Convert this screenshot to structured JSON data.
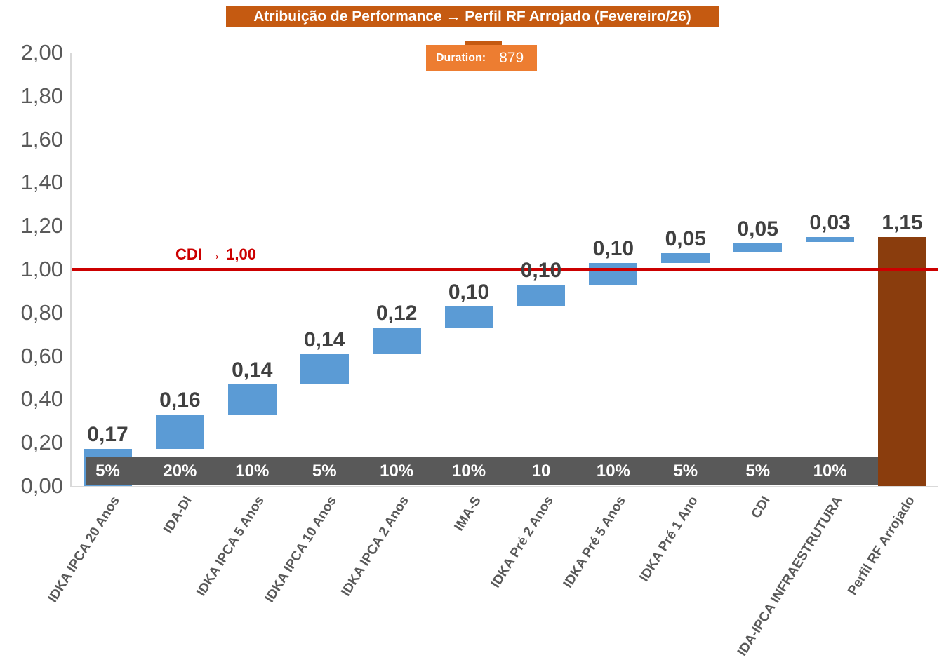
{
  "title": {
    "text": "Atribuição de Performance → Perfil RF Arrojado (Fevereiro/26)"
  },
  "duration_box": {
    "label": "Duration:",
    "value": "879"
  },
  "colors": {
    "title_bg": "#C55A11",
    "duration_bg": "#ED7D31",
    "duration_tab": "#C55A11",
    "bar_blue": "#5B9BD5",
    "bar_brown": "#8A3D0D",
    "band_gray": "#595959",
    "ref_red": "#CC0000",
    "axis_text": "#595959",
    "value_text": "#404040"
  },
  "chart_data": {
    "type": "bar",
    "subtype": "waterfall",
    "title": "Atribuição de Performance → Perfil RF Arrojado (Fevereiro/26)",
    "duration": 879,
    "ylim": [
      0,
      2
    ],
    "ytick_step": 0.2,
    "ytick_labels": [
      "0,00",
      "0,20",
      "0,40",
      "0,60",
      "0,80",
      "1,00",
      "1,20",
      "1,40",
      "1,60",
      "1,80",
      "2,00"
    ],
    "reference_line": {
      "value": 1.0,
      "label": "CDI → 1,00"
    },
    "grid": false,
    "legend": false,
    "categories": [
      "IDKA IPCA 20 Anos",
      "IDA-DI",
      "IDKA IPCA 5 Anos",
      "IDKA IPCA 10 Anos",
      "IDKA IPCA 2 Anos",
      "IMA-S",
      "IDKA Pré 2 Anos",
      "IDKA Pré 5 Anos",
      "IDKA Pré 1 Ano",
      "CDI",
      "IDA-IPCA INFRAESTRUTURA",
      "Perfil RF Arrojado"
    ],
    "bars": [
      {
        "category": "IDKA IPCA 20 Anos",
        "weight": "5%",
        "value": 0.17,
        "label": "0,17",
        "start": 0,
        "end": 0.17,
        "color": "bar_blue"
      },
      {
        "category": "IDA-DI",
        "weight": "20%",
        "value": 0.16,
        "label": "0,16",
        "start": 0.17,
        "end": 0.33,
        "color": "bar_blue"
      },
      {
        "category": "IDKA IPCA 5 Anos",
        "weight": "10%",
        "value": 0.14,
        "label": "0,14",
        "start": 0.33,
        "end": 0.47,
        "color": "bar_blue"
      },
      {
        "category": "IDKA IPCA 10 Anos",
        "weight": "5%",
        "value": 0.14,
        "label": "0,14",
        "start": 0.47,
        "end": 0.61,
        "color": "bar_blue"
      },
      {
        "category": "IDKA IPCA 2 Anos",
        "weight": "10%",
        "value": 0.12,
        "label": "0,12",
        "start": 0.61,
        "end": 0.73,
        "color": "bar_blue"
      },
      {
        "category": "IMA-S",
        "weight": "10%",
        "value": 0.1,
        "label": "0,10",
        "start": 0.73,
        "end": 0.83,
        "color": "bar_blue"
      },
      {
        "category": "IDKA Pré 2 Anos",
        "weight": "10",
        "value": 0.1,
        "label": "0,10",
        "start": 0.83,
        "end": 0.93,
        "color": "bar_blue"
      },
      {
        "category": "IDKA Pré 5 Anos",
        "weight": "10%",
        "value": 0.1,
        "label": "0,10",
        "start": 0.93,
        "end": 1.03,
        "color": "bar_blue"
      },
      {
        "category": "IDKA Pré 1 Ano",
        "weight": "5%",
        "value": 0.05,
        "label": "0,05",
        "start": 1.03,
        "end": 1.075,
        "color": "bar_blue"
      },
      {
        "category": "CDI",
        "weight": "5%",
        "value": 0.05,
        "label": "0,05",
        "start": 1.078,
        "end": 1.121,
        "color": "bar_blue"
      },
      {
        "category": "IDA-IPCA INFRAESTRUTURA",
        "weight": "10%",
        "value": 0.03,
        "label": "0,03",
        "start": 1.126,
        "end": 1.149,
        "color": "bar_blue"
      },
      {
        "category": "Perfil RF Arrojado",
        "weight": "",
        "value": 1.15,
        "label": "1,15",
        "start": 0,
        "end": 1.149,
        "color": "bar_brown",
        "total": true
      }
    ]
  }
}
